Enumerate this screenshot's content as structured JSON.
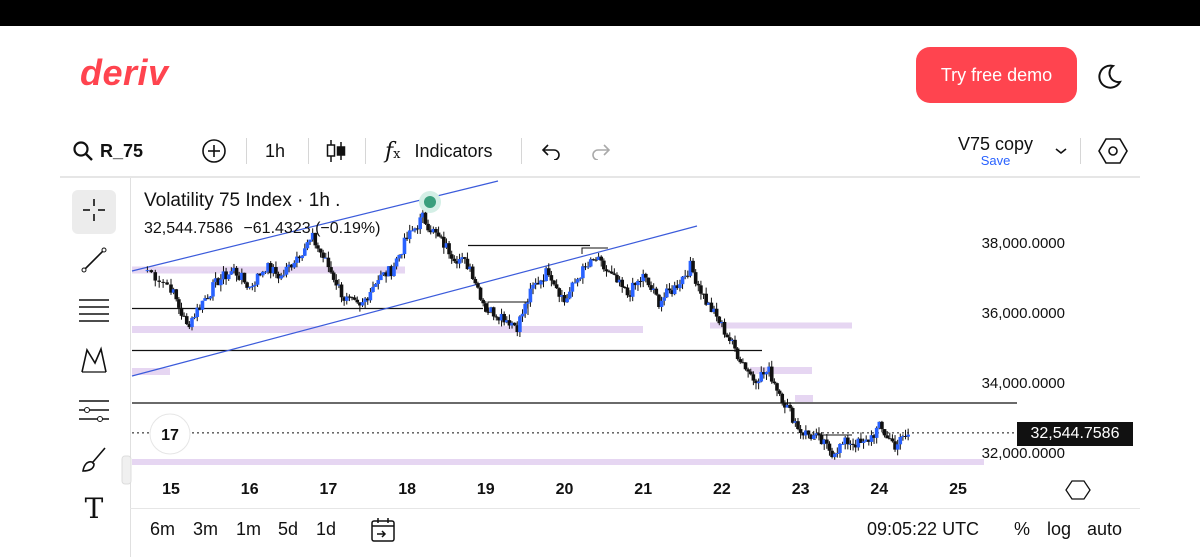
{
  "header": {
    "logo": "deriv",
    "demo_button": "Try free demo",
    "theme_icon": "moon-icon"
  },
  "toolbar": {
    "symbol": "R_75",
    "interval": "1h",
    "indicators_label": "Indicators",
    "layout_name": "V75 copy",
    "save_label": "Save"
  },
  "chart_info": {
    "title": "Volatility 75 Index · 1h .",
    "price": "32,544.7586",
    "change": "−61.4323 (−0.19%)"
  },
  "price_axis": {
    "ticks": [
      "38,000.0000",
      "36,000.0000",
      "34,000.0000",
      "32,000.0000"
    ],
    "current_price": "32,544.7586"
  },
  "time_axis": {
    "ticks": [
      "15",
      "16",
      "17",
      "18",
      "19",
      "20",
      "21",
      "22",
      "23",
      "24",
      "25"
    ]
  },
  "bottom": {
    "ranges": [
      "6m",
      "3m",
      "1m",
      "5d",
      "1d"
    ],
    "clock": "09:05:22 UTC",
    "percent": "%",
    "log": "log",
    "auto": "auto"
  },
  "colors": {
    "brand": "#ff444f",
    "candle_up": "#2962ff",
    "candle_down": "#111111",
    "zone": "#e6d6f2",
    "channel": "#3b5bdb"
  },
  "chart_data": {
    "type": "candlestick",
    "x_ticks": [
      "15",
      "16",
      "17",
      "18",
      "19",
      "20",
      "21",
      "22",
      "23",
      "24",
      "25"
    ],
    "y_ticks": [
      32000,
      34000,
      36000,
      38000
    ],
    "ylim": [
      31600,
      39200
    ],
    "last_price": 32544.7586,
    "close_path": [
      [
        14.7,
        37200
      ],
      [
        15.0,
        36700
      ],
      [
        15.2,
        35600
      ],
      [
        15.4,
        36300
      ],
      [
        15.6,
        36900
      ],
      [
        15.8,
        37200
      ],
      [
        16.0,
        36700
      ],
      [
        16.2,
        37300
      ],
      [
        16.4,
        37000
      ],
      [
        16.6,
        37600
      ],
      [
        16.8,
        38100
      ],
      [
        17.0,
        37300
      ],
      [
        17.2,
        36400
      ],
      [
        17.4,
        36100
      ],
      [
        17.6,
        36900
      ],
      [
        17.8,
        37200
      ],
      [
        18.0,
        38100
      ],
      [
        18.2,
        38700
      ],
      [
        18.4,
        38100
      ],
      [
        18.6,
        37600
      ],
      [
        18.8,
        37300
      ],
      [
        19.0,
        36100
      ],
      [
        19.2,
        35900
      ],
      [
        19.4,
        35600
      ],
      [
        19.6,
        36700
      ],
      [
        19.8,
        37200
      ],
      [
        20.0,
        36300
      ],
      [
        20.2,
        37100
      ],
      [
        20.4,
        37500
      ],
      [
        20.6,
        37000
      ],
      [
        20.8,
        36500
      ],
      [
        21.0,
        37000
      ],
      [
        21.2,
        36300
      ],
      [
        21.4,
        36700
      ],
      [
        21.6,
        37300
      ],
      [
        21.8,
        36300
      ],
      [
        22.0,
        35600
      ],
      [
        22.2,
        34800
      ],
      [
        22.4,
        34100
      ],
      [
        22.6,
        34300
      ],
      [
        22.8,
        33400
      ],
      [
        23.0,
        32600
      ],
      [
        23.2,
        32400
      ],
      [
        23.4,
        32000
      ],
      [
        23.6,
        32300
      ],
      [
        23.8,
        32200
      ],
      [
        24.0,
        32700
      ],
      [
        24.2,
        32200
      ],
      [
        24.4,
        32544
      ]
    ],
    "horizontal_levels": [
      34900,
      33400,
      37900,
      36100
    ],
    "zones": [
      {
        "y_from": 37100,
        "y_to": 37300
      },
      {
        "y_from": 35400,
        "y_to": 35600
      },
      {
        "y_from": 35600,
        "y_to": 35700
      },
      {
        "y_from": 31700,
        "y_to": 31800
      }
    ]
  }
}
